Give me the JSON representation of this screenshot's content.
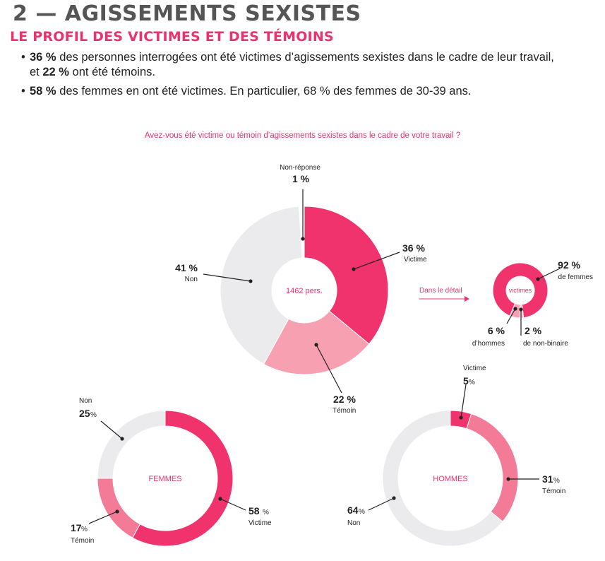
{
  "header": {
    "title": "2 — AGISSEMENTS SEXISTES",
    "subtitle": "LE PROFIL DES VICTIMES ET DES TÉMOINS"
  },
  "bullets": [
    {
      "pct": "36 %",
      "text": " des personnes interrogées ont été victimes d’agissements sexistes dans le cadre de leur travail,",
      "line2_prefix": "et ",
      "pct2": "22 %",
      "line2_text": " ont été témoins."
    },
    {
      "pct": "58 %",
      "text": " des femmes en ont été victimes. En particulier, 68 % des femmes de 30-39 ans."
    }
  ],
  "question": "Avez-vous été victime ou témoin d’agissements sexistes dans le cadre de votre travail ?",
  "colors": {
    "victime": "#f0336d",
    "temoin": "#f6a0b1",
    "non": "#ebebed",
    "nonreponse": "#ffffff",
    "accent": "#e8336d"
  },
  "chart_data": [
    {
      "type": "pie",
      "id": "total",
      "center_label": "1462 pers.",
      "slices": [
        {
          "label": "Victime",
          "value": 36,
          "text": "36 %"
        },
        {
          "label": "Témoin",
          "value": 22,
          "text": "22 %"
        },
        {
          "label": "Non",
          "value": 41,
          "text": "41 %"
        },
        {
          "label": "Non-réponse",
          "value": 1,
          "text": "1 %"
        }
      ]
    },
    {
      "type": "pie",
      "id": "detail",
      "intro": "Dans le détail",
      "center_label": "victimes",
      "slices": [
        {
          "label": "de femmes",
          "value": 92,
          "text": "92 %"
        },
        {
          "label": "d’hommes",
          "value": 6,
          "text": "6 %"
        },
        {
          "label": "de non-binaire",
          "value": 2,
          "text": "2 %"
        }
      ]
    },
    {
      "type": "pie",
      "id": "femmes",
      "center_label": "FEMMES",
      "slices": [
        {
          "label": "Victime",
          "value": 58,
          "num": "58",
          "unit": " %"
        },
        {
          "label": "Témoin",
          "value": 17,
          "num": "17",
          "unit": " %"
        },
        {
          "label": "Non",
          "value": 25,
          "num": "25",
          "unit": " %"
        }
      ]
    },
    {
      "type": "pie",
      "id": "hommes",
      "center_label": "HOMMES",
      "slices": [
        {
          "label": "Victime",
          "value": 5,
          "num": "5",
          "unit": " %"
        },
        {
          "label": "Témoin",
          "value": 31,
          "num": "31",
          "unit": " %"
        },
        {
          "label": "Non",
          "value": 64,
          "num": "64",
          "unit": " %"
        }
      ]
    }
  ]
}
